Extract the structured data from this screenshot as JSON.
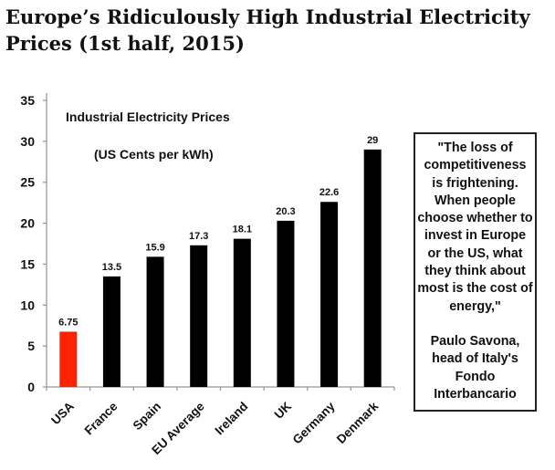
{
  "title": "Europe’s Ridiculously High Industrial Electricity Prices (1st half, 2015)",
  "chart_data": {
    "type": "bar",
    "title": "Industrial Electricity Prices",
    "subtitle": "(US Cents per kWh)",
    "categories": [
      "USA",
      "France",
      "Spain",
      "EU Average",
      "Ireland",
      "UK",
      "Germany",
      "Denmark"
    ],
    "values": [
      6.75,
      13.5,
      15.9,
      17.3,
      18.1,
      20.3,
      22.6,
      29
    ],
    "data_labels": [
      "6.75",
      "13.5",
      "15.9",
      "17.3",
      "18.1",
      "20.3",
      "22.6",
      "29"
    ],
    "colors": [
      "#ff2200",
      "#000000",
      "#000000",
      "#000000",
      "#000000",
      "#000000",
      "#000000",
      "#000000"
    ],
    "ylim": [
      0,
      35
    ],
    "yticks": [
      "0",
      "5",
      "10",
      "15",
      "20",
      "25",
      "30",
      "35"
    ],
    "grid": false,
    "xlabel": "",
    "ylabel": ""
  },
  "quote": {
    "text": "\"The loss of competitiveness is frightening. When people choose whether to invest in Europe or the US, what they think about most is the cost of energy,\"",
    "attribution": "Paulo Savona, head of Italy's Fondo Interbancario"
  }
}
